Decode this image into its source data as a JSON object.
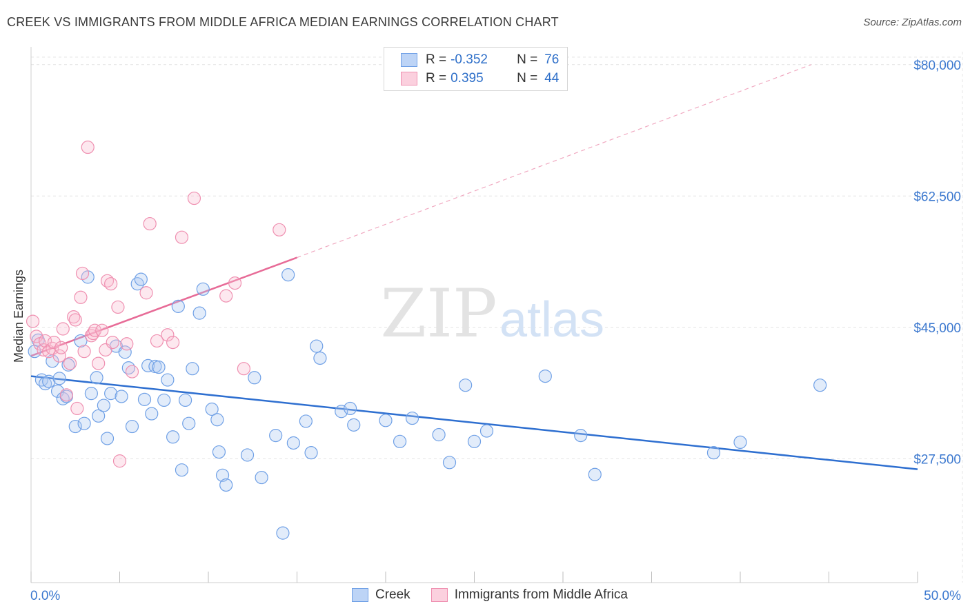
{
  "title": "CREEK VS IMMIGRANTS FROM MIDDLE AFRICA MEDIAN EARNINGS CORRELATION CHART",
  "source": "Source: ZipAtlas.com",
  "watermark": {
    "zip": "ZIP",
    "atlas": "atlas"
  },
  "legend": {
    "rows": [
      {
        "r_label": "R =",
        "r_value": "-0.352",
        "n_label": "N =",
        "n_value": "76",
        "color": "#6fa0e6"
      },
      {
        "r_label": "R =",
        "r_value": "0.395",
        "n_label": "N =",
        "n_value": "44",
        "color": "#ef8fb0"
      }
    ]
  },
  "bottom_legend": [
    {
      "label": "Creek",
      "color": "#6fa0e6"
    },
    {
      "label": "Immigrants from Middle Africa",
      "color": "#ef8fb0"
    }
  ],
  "chart_data": {
    "type": "scatter",
    "title": "CREEK VS IMMIGRANTS FROM MIDDLE AFRICA MEDIAN EARNINGS CORRELATION CHART",
    "xlabel": "",
    "ylabel": "Median Earnings",
    "xlim": [
      0,
      50
    ],
    "ylim": [
      11000,
      82000
    ],
    "x_tick_labels": [
      "0.0%",
      "50.0%"
    ],
    "y_ticks": [
      27500,
      45000,
      62500,
      80000
    ],
    "y_tick_labels": [
      "$27,500",
      "$45,000",
      "$62,500",
      "$80,000"
    ],
    "grid": true,
    "series": [
      {
        "name": "Creek",
        "color": "#6fa0e6",
        "trend": {
          "x": [
            0,
            50
          ],
          "y": [
            38500,
            26100
          ],
          "dashed_extension": false
        },
        "points": [
          [
            0.2,
            41800
          ],
          [
            0.4,
            43300
          ],
          [
            0.6,
            38000
          ],
          [
            0.8,
            37500
          ],
          [
            1.0,
            37800
          ],
          [
            1.2,
            40500
          ],
          [
            1.5,
            36500
          ],
          [
            1.6,
            38200
          ],
          [
            1.8,
            35500
          ],
          [
            2.0,
            35800
          ],
          [
            2.1,
            40000
          ],
          [
            2.5,
            31800
          ],
          [
            2.8,
            43200
          ],
          [
            3.0,
            32200
          ],
          [
            3.2,
            51700
          ],
          [
            3.4,
            36200
          ],
          [
            3.7,
            38300
          ],
          [
            3.8,
            33200
          ],
          [
            4.1,
            34600
          ],
          [
            4.3,
            30200
          ],
          [
            4.5,
            36200
          ],
          [
            4.8,
            42500
          ],
          [
            5.1,
            35800
          ],
          [
            5.3,
            41700
          ],
          [
            5.5,
            39600
          ],
          [
            5.7,
            31800
          ],
          [
            6.0,
            50800
          ],
          [
            6.2,
            51400
          ],
          [
            6.4,
            35400
          ],
          [
            6.6,
            39900
          ],
          [
            6.8,
            33500
          ],
          [
            7.0,
            39800
          ],
          [
            7.2,
            39700
          ],
          [
            7.5,
            35300
          ],
          [
            7.7,
            38000
          ],
          [
            8.0,
            30400
          ],
          [
            8.3,
            47800
          ],
          [
            8.5,
            26000
          ],
          [
            8.7,
            35300
          ],
          [
            8.9,
            32200
          ],
          [
            9.1,
            39500
          ],
          [
            9.5,
            46900
          ],
          [
            9.7,
            50100
          ],
          [
            10.2,
            34100
          ],
          [
            10.5,
            32700
          ],
          [
            10.6,
            28400
          ],
          [
            10.8,
            25300
          ],
          [
            11.0,
            24000
          ],
          [
            12.2,
            28000
          ],
          [
            12.6,
            38300
          ],
          [
            13.0,
            25000
          ],
          [
            13.8,
            30600
          ],
          [
            14.2,
            17600
          ],
          [
            14.5,
            52000
          ],
          [
            14.8,
            29600
          ],
          [
            15.5,
            32500
          ],
          [
            15.8,
            28300
          ],
          [
            16.1,
            42500
          ],
          [
            16.3,
            40900
          ],
          [
            17.5,
            33800
          ],
          [
            18.0,
            34200
          ],
          [
            18.2,
            32000
          ],
          [
            20.0,
            32600
          ],
          [
            20.8,
            29800
          ],
          [
            21.5,
            32900
          ],
          [
            23.0,
            30700
          ],
          [
            23.6,
            27000
          ],
          [
            24.5,
            37300
          ],
          [
            25.0,
            29800
          ],
          [
            25.7,
            31200
          ],
          [
            29.0,
            38500
          ],
          [
            31.0,
            30600
          ],
          [
            31.8,
            25400
          ],
          [
            38.5,
            28300
          ],
          [
            40.0,
            29700
          ],
          [
            44.5,
            37300
          ]
        ]
      },
      {
        "name": "Immigrants from Middle Africa",
        "color": "#ef8fb0",
        "trend": {
          "x": [
            0,
            15
          ],
          "y": [
            41200,
            54300
          ],
          "extension": {
            "x": [
              15,
              44
            ],
            "y": [
              54300,
              80000
            ]
          }
        },
        "points": [
          [
            0.1,
            45800
          ],
          [
            0.3,
            43800
          ],
          [
            0.5,
            42800
          ],
          [
            0.7,
            42000
          ],
          [
            0.8,
            43200
          ],
          [
            1.0,
            41800
          ],
          [
            1.2,
            42200
          ],
          [
            1.3,
            43000
          ],
          [
            1.6,
            41200
          ],
          [
            1.7,
            42300
          ],
          [
            1.8,
            44800
          ],
          [
            2.0,
            36000
          ],
          [
            2.2,
            40200
          ],
          [
            2.4,
            46400
          ],
          [
            2.5,
            46000
          ],
          [
            2.6,
            34200
          ],
          [
            2.8,
            49000
          ],
          [
            2.9,
            52200
          ],
          [
            3.0,
            41800
          ],
          [
            3.2,
            69000
          ],
          [
            3.4,
            43900
          ],
          [
            3.5,
            44200
          ],
          [
            3.6,
            44600
          ],
          [
            3.8,
            40200
          ],
          [
            4.0,
            44600
          ],
          [
            4.2,
            42000
          ],
          [
            4.3,
            51200
          ],
          [
            4.5,
            50800
          ],
          [
            4.6,
            43000
          ],
          [
            4.9,
            47700
          ],
          [
            5.0,
            27200
          ],
          [
            5.4,
            42800
          ],
          [
            5.7,
            39100
          ],
          [
            6.5,
            49600
          ],
          [
            6.7,
            58800
          ],
          [
            7.1,
            43200
          ],
          [
            7.7,
            44000
          ],
          [
            8.0,
            43000
          ],
          [
            8.5,
            57000
          ],
          [
            9.2,
            62200
          ],
          [
            11.0,
            49200
          ],
          [
            11.5,
            50900
          ],
          [
            12.0,
            39500
          ],
          [
            14.0,
            58000
          ]
        ]
      }
    ]
  }
}
